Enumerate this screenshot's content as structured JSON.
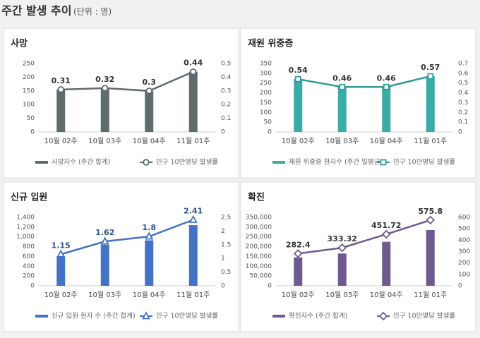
{
  "header": {
    "title": "주간 발생 추이",
    "unit": "(단위 : 명)"
  },
  "chart_data": [
    {
      "type": "bar_line",
      "title": "사망",
      "categories": [
        "10월 02주",
        "10월 03주",
        "10월 04주",
        "11월 01주"
      ],
      "series": [
        {
          "name": "사망자수 (주간 합계)",
          "color": "#5f6b6d",
          "values": [
            155,
            160,
            150,
            220
          ]
        },
        {
          "name": "인구 10만명당 발생률",
          "color": "#5f6b6d",
          "axis": "y2",
          "marker": "circle",
          "values": [
            0.31,
            0.32,
            0.3,
            0.44
          ]
        }
      ],
      "ylim": [
        0,
        250
      ],
      "yticks": [
        0,
        50,
        100,
        150,
        200,
        250
      ],
      "y2lim": [
        0,
        0.5
      ],
      "y2ticks": [
        0,
        0.1,
        0.2,
        0.3,
        0.4,
        0.5
      ],
      "grid": false
    },
    {
      "type": "bar_line",
      "title": "재원 위중증",
      "categories": [
        "10월 02주",
        "10월 03주",
        "10월 04주",
        "11월 01주"
      ],
      "series": [
        {
          "name": "재원 위중증 환자수 (주간 일평균)",
          "color": "#3aaba6",
          "values": [
            270,
            230,
            230,
            285
          ]
        },
        {
          "name": "인구 10만명당 발생률",
          "color": "#2f9c97",
          "axis": "y2",
          "marker": "square",
          "values": [
            0.54,
            0.46,
            0.46,
            0.57
          ]
        }
      ],
      "ylim": [
        0,
        350
      ],
      "yticks": [
        0,
        50,
        100,
        150,
        200,
        250,
        300,
        350
      ],
      "y2lim": [
        0,
        0.7
      ],
      "y2ticks": [
        0,
        0.1,
        0.2,
        0.3,
        0.4,
        0.5,
        0.6,
        0.7
      ],
      "grid": false
    },
    {
      "type": "bar_line",
      "title": "신규 입원",
      "categories": [
        "10월 02주",
        "10월 03주",
        "10월 04주",
        "11월 01주"
      ],
      "series": [
        {
          "name": "신규 입원 환자 수 (주간 합계)",
          "color": "#4472c4",
          "values": [
            600,
            840,
            930,
            1240
          ]
        },
        {
          "name": "인구 10만명당 발생률",
          "color": "#4472c4",
          "axis": "y2",
          "marker": "triangle",
          "values": [
            1.15,
            1.62,
            1.8,
            2.41
          ]
        }
      ],
      "ylim": [
        0,
        1400
      ],
      "yticks": [
        0,
        200,
        400,
        600,
        800,
        {
          "value": 1000,
          "label": "1,000"
        },
        {
          "value": 1200,
          "label": "1,200"
        },
        {
          "value": 1400,
          "label": "1,400"
        }
      ],
      "y2lim": [
        0,
        2.5
      ],
      "y2ticks": [
        0,
        0.5,
        1,
        1.5,
        2,
        2.5
      ],
      "grid": false
    },
    {
      "type": "bar_line",
      "title": "확진",
      "categories": [
        "10월 02주",
        "10월 03주",
        "10월 04주",
        "11월 01주"
      ],
      "series": [
        {
          "name": "확진자수 (주간 합계)",
          "color": "#6e5a8e",
          "values": [
            145000,
            165000,
            225000,
            285000
          ]
        },
        {
          "name": "인구 10만명당 발생률",
          "color": "#6e5a8e",
          "axis": "y2",
          "marker": "diamond",
          "values": [
            282.4,
            333.32,
            451.72,
            575.8
          ]
        }
      ],
      "ylim": [
        0,
        350000
      ],
      "yticks": [
        0,
        {
          "value": 50000,
          "label": "50,000"
        },
        {
          "value": 100000,
          "label": "100,000"
        },
        {
          "value": 150000,
          "label": "150,000"
        },
        {
          "value": 200000,
          "label": "200,000"
        },
        {
          "value": 250000,
          "label": "250,000"
        },
        {
          "value": 300000,
          "label": "300,000"
        },
        {
          "value": 350000,
          "label": "350,000"
        }
      ],
      "y2lim": [
        0,
        600
      ],
      "y2ticks": [
        0,
        100,
        200,
        300,
        400,
        500,
        600
      ],
      "grid": false
    }
  ]
}
